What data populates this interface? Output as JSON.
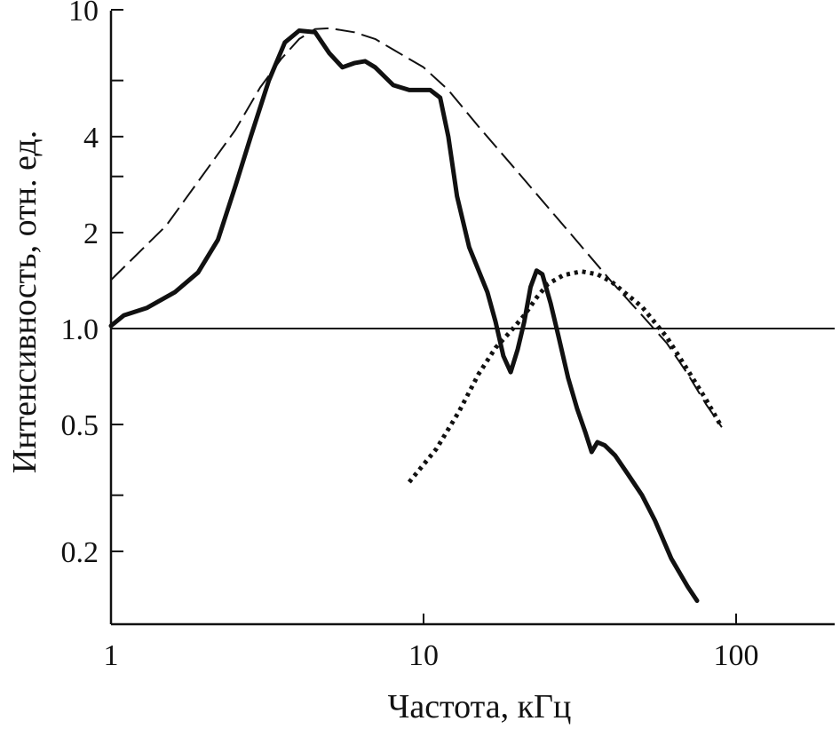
{
  "chart_data": {
    "type": "line",
    "xscale": "log",
    "yscale": "log",
    "xlabel": "Частота, кГц",
    "ylabel": "Интенсивность, отн. ед.",
    "xlim": [
      1,
      200
    ],
    "ylim": [
      0.12,
      12
    ],
    "x_ticks": [
      {
        "value": 1,
        "label": "1"
      },
      {
        "value": 10,
        "label": "10"
      },
      {
        "value": 100,
        "label": "100"
      }
    ],
    "y_ticks_labeled": [
      {
        "value": 0.2,
        "label": "0.2"
      },
      {
        "value": 0.5,
        "label": "0.5"
      },
      {
        "value": 1.0,
        "label": "1.0"
      },
      {
        "value": 2,
        "label": "2"
      },
      {
        "value": 4,
        "label": "4"
      },
      {
        "value": 10,
        "label": "10"
      }
    ],
    "y_ticks_minor": [
      0.3,
      3,
      6
    ],
    "reference_line_y": 1.0,
    "grid": false,
    "series": [
      {
        "style": "solid",
        "points": [
          [
            1.0,
            1.02
          ],
          [
            1.1,
            1.1
          ],
          [
            1.3,
            1.16
          ],
          [
            1.6,
            1.3
          ],
          [
            1.9,
            1.5
          ],
          [
            2.2,
            1.9
          ],
          [
            2.5,
            2.8
          ],
          [
            2.8,
            4.0
          ],
          [
            3.2,
            6.0
          ],
          [
            3.6,
            7.9
          ],
          [
            4.0,
            8.6
          ],
          [
            4.5,
            8.5
          ],
          [
            5.0,
            7.3
          ],
          [
            5.5,
            6.6
          ],
          [
            6.0,
            6.8
          ],
          [
            6.5,
            6.9
          ],
          [
            7.0,
            6.6
          ],
          [
            8.0,
            5.8
          ],
          [
            9.0,
            5.6
          ],
          [
            10.5,
            5.6
          ],
          [
            11.3,
            5.3
          ],
          [
            12.0,
            4.0
          ],
          [
            12.8,
            2.6
          ],
          [
            14.0,
            1.8
          ],
          [
            16.0,
            1.3
          ],
          [
            17.0,
            1.05
          ],
          [
            18.0,
            0.82
          ],
          [
            19.0,
            0.73
          ],
          [
            20.0,
            0.86
          ],
          [
            21.0,
            1.05
          ],
          [
            22.0,
            1.35
          ],
          [
            23.0,
            1.52
          ],
          [
            24.0,
            1.48
          ],
          [
            25.5,
            1.2
          ],
          [
            27.0,
            0.95
          ],
          [
            29.0,
            0.7
          ],
          [
            31.0,
            0.56
          ],
          [
            33.0,
            0.47
          ],
          [
            34.5,
            0.41
          ],
          [
            36.0,
            0.44
          ],
          [
            38.0,
            0.43
          ],
          [
            41.0,
            0.4
          ],
          [
            45.0,
            0.35
          ],
          [
            50.0,
            0.3
          ],
          [
            55.0,
            0.25
          ],
          [
            62.0,
            0.19
          ],
          [
            70.0,
            0.155
          ],
          [
            75.0,
            0.14
          ]
        ]
      },
      {
        "style": "dashed",
        "points": [
          [
            1.0,
            1.42
          ],
          [
            1.5,
            2.1
          ],
          [
            2.0,
            3.1
          ],
          [
            2.5,
            4.2
          ],
          [
            3.0,
            5.7
          ],
          [
            3.5,
            7.0
          ],
          [
            4.0,
            8.1
          ],
          [
            4.5,
            8.7
          ],
          [
            5.0,
            8.75
          ],
          [
            6.0,
            8.5
          ],
          [
            7.0,
            8.1
          ],
          [
            8.0,
            7.5
          ],
          [
            10.0,
            6.6
          ],
          [
            12.0,
            5.6
          ],
          [
            15.0,
            4.3
          ],
          [
            20.0,
            3.1
          ],
          [
            25.0,
            2.4
          ],
          [
            30.0,
            1.95
          ],
          [
            40.0,
            1.4
          ],
          [
            50.0,
            1.1
          ],
          [
            60.0,
            0.9
          ],
          [
            70.0,
            0.72
          ],
          [
            80.0,
            0.58
          ],
          [
            90.0,
            0.49
          ]
        ]
      },
      {
        "style": "dotted",
        "points": [
          [
            9.0,
            0.33
          ],
          [
            11.0,
            0.42
          ],
          [
            13.0,
            0.55
          ],
          [
            15.0,
            0.72
          ],
          [
            17.0,
            0.87
          ],
          [
            19.0,
            0.98
          ],
          [
            21.0,
            1.1
          ],
          [
            23.0,
            1.25
          ],
          [
            25.0,
            1.38
          ],
          [
            28.0,
            1.47
          ],
          [
            32.0,
            1.51
          ],
          [
            36.0,
            1.48
          ],
          [
            40.0,
            1.4
          ],
          [
            50.0,
            1.17
          ],
          [
            60.0,
            0.94
          ],
          [
            70.0,
            0.74
          ],
          [
            80.0,
            0.6
          ],
          [
            90.0,
            0.49
          ]
        ]
      }
    ]
  }
}
